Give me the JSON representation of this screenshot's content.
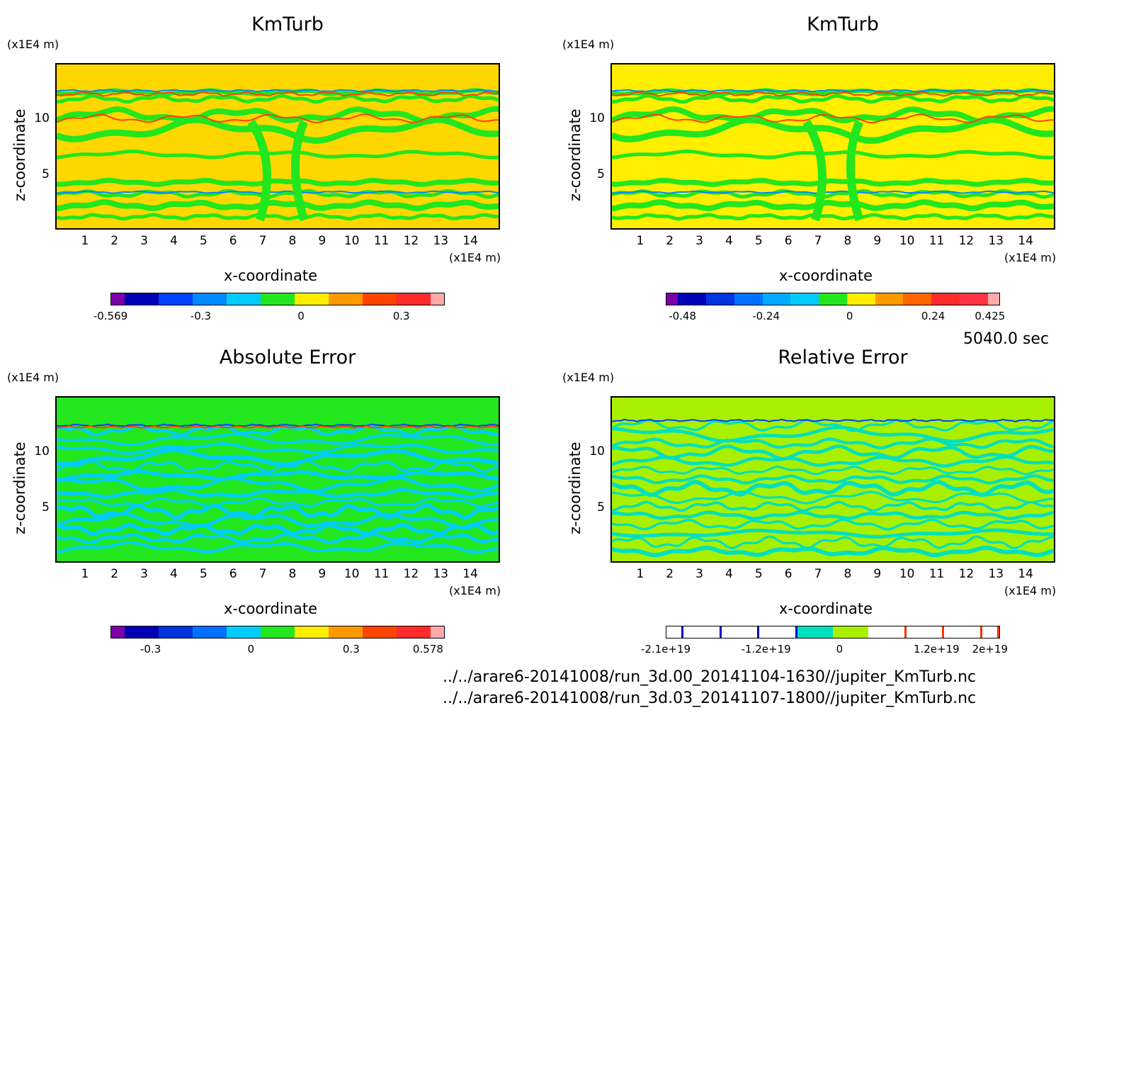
{
  "time_label": "5040.0 sec",
  "file_paths": [
    "../../arare6-20141008/run_3d.00_20141104-1630//jupiter_KmTurb.nc",
    "../../arare6-20141008/run_3d.03_20141107-1800//jupiter_KmTurb.nc"
  ],
  "chart_data": [
    {
      "type": "heatmap",
      "title": "KmTurb",
      "xlabel": "x-coordinate",
      "ylabel": "z-coordinate",
      "x_unit": "(x1E4 m)",
      "y_unit": "(x1E4 m)",
      "x_ticks": [
        "1",
        "2",
        "3",
        "4",
        "5",
        "6",
        "7",
        "8",
        "9",
        "10",
        "11",
        "12",
        "13",
        "14"
      ],
      "y_ticks": [
        "5",
        "10"
      ],
      "xlim": [
        0,
        15
      ],
      "ylim": [
        0,
        15
      ],
      "background_color": "#ffd700",
      "colorbar": {
        "colors": [
          "#7b00a8",
          "#0000b4",
          "#0040ff",
          "#0088ff",
          "#00ccff",
          "#22e61e",
          "#ffee00",
          "#ff9900",
          "#ff4400",
          "#ff2b2b",
          "#ffaaaa"
        ],
        "tick_labels": [
          "-0.569",
          "-0.3",
          "0",
          "0.3"
        ],
        "tick_values": [
          -0.569,
          -0.3,
          0,
          0.3
        ]
      }
    },
    {
      "type": "heatmap",
      "title": "KmTurb",
      "xlabel": "x-coordinate",
      "ylabel": "z-coordinate",
      "x_unit": "(x1E4 m)",
      "y_unit": "(x1E4 m)",
      "x_ticks": [
        "1",
        "2",
        "3",
        "4",
        "5",
        "6",
        "7",
        "8",
        "9",
        "10",
        "11",
        "12",
        "13",
        "14"
      ],
      "y_ticks": [
        "5",
        "10"
      ],
      "xlim": [
        0,
        15
      ],
      "ylim": [
        0,
        15
      ],
      "background_color": "#ffee00",
      "colorbar": {
        "colors": [
          "#7b00a8",
          "#0000b4",
          "#0033e0",
          "#0070ff",
          "#00aaff",
          "#00ccff",
          "#22e61e",
          "#ffee00",
          "#ff9900",
          "#ff6600",
          "#ff2b2b",
          "#ff3344",
          "#ffaaaa"
        ],
        "tick_labels": [
          "-0.48",
          "-0.24",
          "0",
          "0.24",
          "0.425"
        ],
        "tick_values": [
          -0.48,
          -0.24,
          0,
          0.24,
          0.425
        ]
      }
    },
    {
      "type": "heatmap",
      "title": "Absolute Error",
      "xlabel": "x-coordinate",
      "ylabel": "z-coordinate",
      "x_unit": "(x1E4 m)",
      "y_unit": "(x1E4 m)",
      "x_ticks": [
        "1",
        "2",
        "3",
        "4",
        "5",
        "6",
        "7",
        "8",
        "9",
        "10",
        "11",
        "12",
        "13",
        "14"
      ],
      "y_ticks": [
        "5",
        "10"
      ],
      "xlim": [
        0,
        15
      ],
      "ylim": [
        0,
        15
      ],
      "background_color": "#22e61e",
      "colorbar": {
        "colors": [
          "#7b00a8",
          "#0000b4",
          "#0033e0",
          "#0070ff",
          "#00ccff",
          "#22e61e",
          "#ffee00",
          "#ff9900",
          "#ff4400",
          "#ff2b2b",
          "#ffaaaa"
        ],
        "tick_labels": [
          "-0.3",
          "0",
          "0.3",
          "0.578"
        ],
        "tick_values": [
          -0.3,
          0,
          0.3,
          0.578
        ]
      }
    },
    {
      "type": "heatmap",
      "title": "Relative Error",
      "xlabel": "x-coordinate",
      "ylabel": "z-coordinate",
      "x_unit": "(x1E4 m)",
      "y_unit": "(x1E4 m)",
      "x_ticks": [
        "1",
        "2",
        "3",
        "4",
        "5",
        "6",
        "7",
        "8",
        "9",
        "10",
        "11",
        "12",
        "13",
        "14"
      ],
      "y_ticks": [
        "5",
        "10"
      ],
      "xlim": [
        0,
        15
      ],
      "ylim": [
        0,
        15
      ],
      "background_color": "#a8f000",
      "colorbar": {
        "colors": [
          "#ffffff",
          "#ffffff",
          "#ffffff",
          "#ffffff",
          "#00e0c0",
          "#a8f000",
          "#ffffff",
          "#ffffff",
          "#ffffff",
          "#ffffff"
        ],
        "tick_labels": [
          "-2.1e+19",
          "-1.2e+19",
          "0",
          "1.2e+19",
          "2e+19"
        ],
        "tick_values": [
          -2.1e+19,
          -1.2e+19,
          0,
          1.2e+19,
          2e+19
        ]
      }
    }
  ]
}
